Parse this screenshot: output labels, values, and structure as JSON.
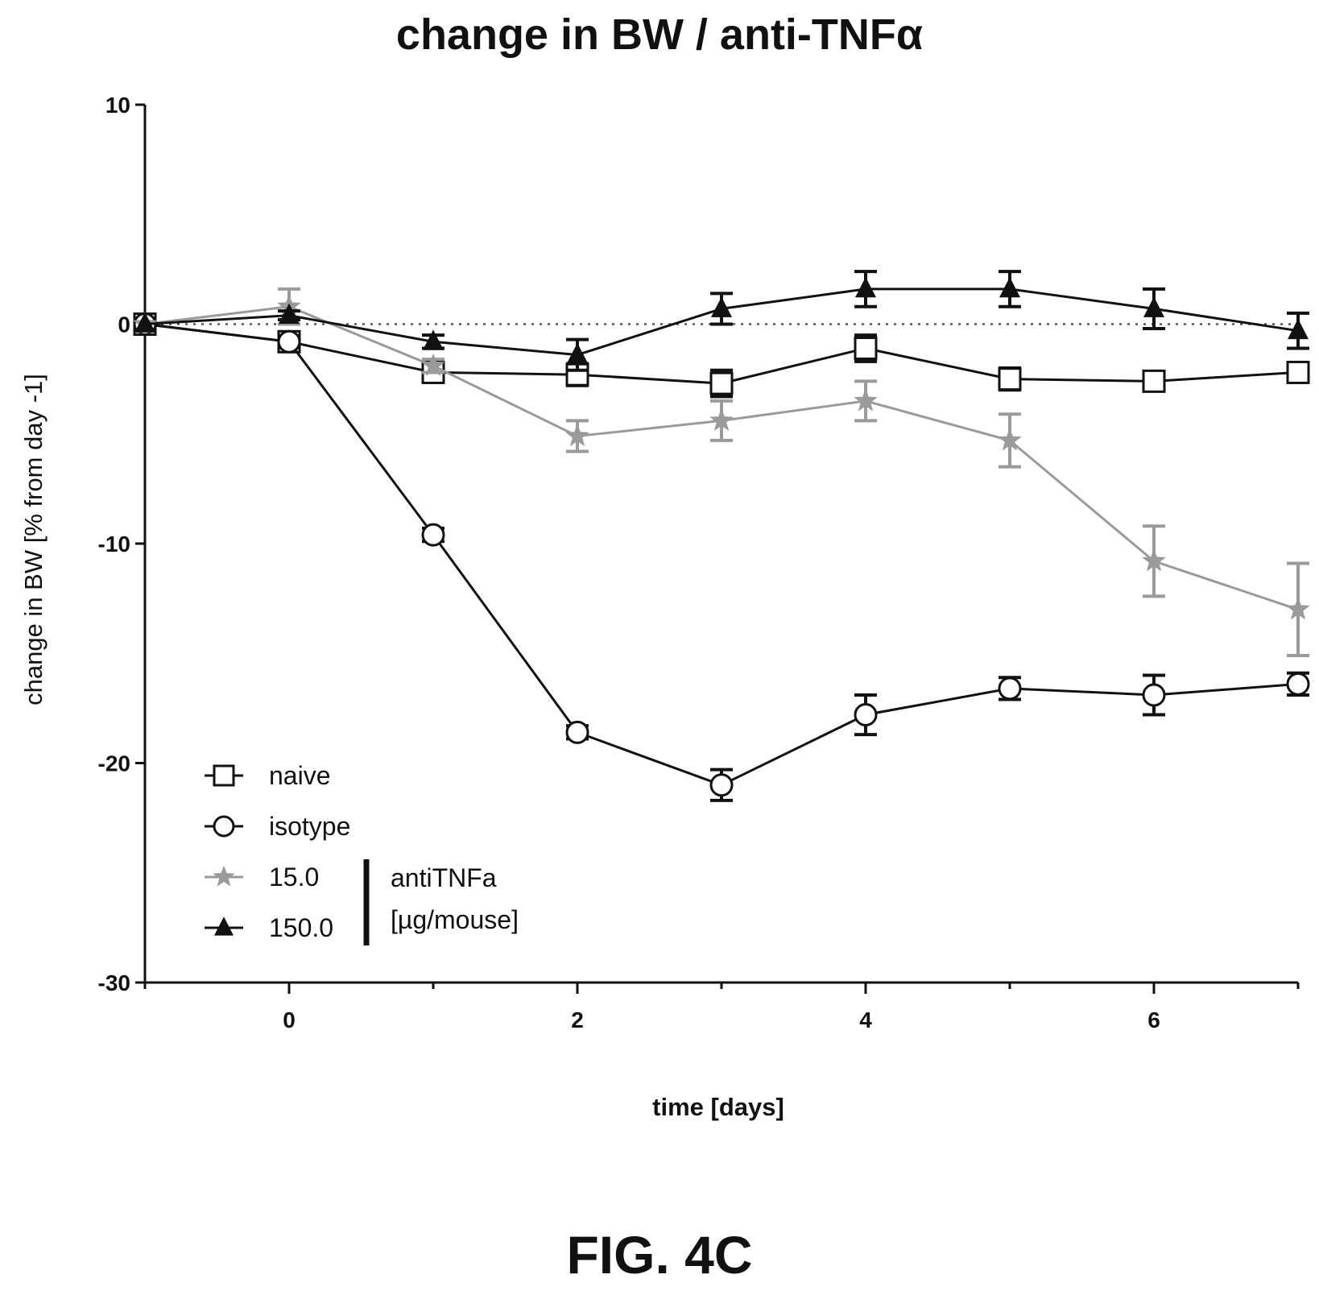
{
  "title": "change in BW / anti-TNFα",
  "figure_label": "FIG. 4C",
  "chart_data": {
    "type": "line",
    "title": "change in BW / anti-TNFα",
    "xlabel": "time [days]",
    "ylabel": "change in BW [% from day -1]",
    "xlim": [
      -1,
      7
    ],
    "ylim": [
      -30,
      10
    ],
    "xticks": [
      0,
      2,
      4,
      6
    ],
    "yticks": [
      10,
      0,
      -10,
      -20,
      -30
    ],
    "xtick_labels": [
      "0",
      "2",
      "4",
      "6"
    ],
    "ytick_labels": [
      "10",
      "0",
      "-10",
      "-20",
      "-30"
    ],
    "x": [
      -1,
      0,
      1,
      2,
      3,
      4,
      5,
      6,
      7
    ],
    "reference_line": {
      "y": 0,
      "style": "dotted"
    },
    "grid": false,
    "legend_position": "bottom-left",
    "legend_group_label": [
      "antiTNFa",
      "[µg/mouse]"
    ],
    "series": [
      {
        "name": "naive",
        "marker": "square",
        "color": "#111111",
        "values": [
          0,
          -0.8,
          -2.2,
          -2.3,
          -2.7,
          -1.1,
          -2.5,
          -2.6,
          -2.2
        ],
        "errors": [
          0,
          0.2,
          0.3,
          0.5,
          0.6,
          0.6,
          0.5,
          0.4,
          0.3
        ]
      },
      {
        "name": "isotype",
        "marker": "circle",
        "color": "#111111",
        "values": [
          0,
          -0.8,
          -9.6,
          -18.6,
          -21.0,
          -17.8,
          -16.6,
          -16.9,
          -16.4
        ],
        "errors": [
          0,
          0.2,
          0.3,
          0.3,
          0.7,
          0.9,
          0.5,
          0.9,
          0.5
        ]
      },
      {
        "name": "15.0",
        "marker": "star",
        "color": "#9a9a9a",
        "values": [
          0,
          0.8,
          -1.9,
          -5.1,
          -4.4,
          -3.5,
          -5.3,
          -10.8,
          -13.0
        ],
        "errors": [
          0,
          0.8,
          0.3,
          0.7,
          0.9,
          0.9,
          1.2,
          1.6,
          2.1
        ]
      },
      {
        "name": "150.0",
        "marker": "triangle",
        "color": "#111111",
        "values": [
          0,
          0.4,
          -0.8,
          -1.4,
          0.7,
          1.6,
          1.6,
          0.7,
          -0.3
        ],
        "errors": [
          0,
          0.2,
          0.3,
          0.7,
          0.7,
          0.8,
          0.8,
          0.9,
          0.8
        ]
      }
    ]
  }
}
